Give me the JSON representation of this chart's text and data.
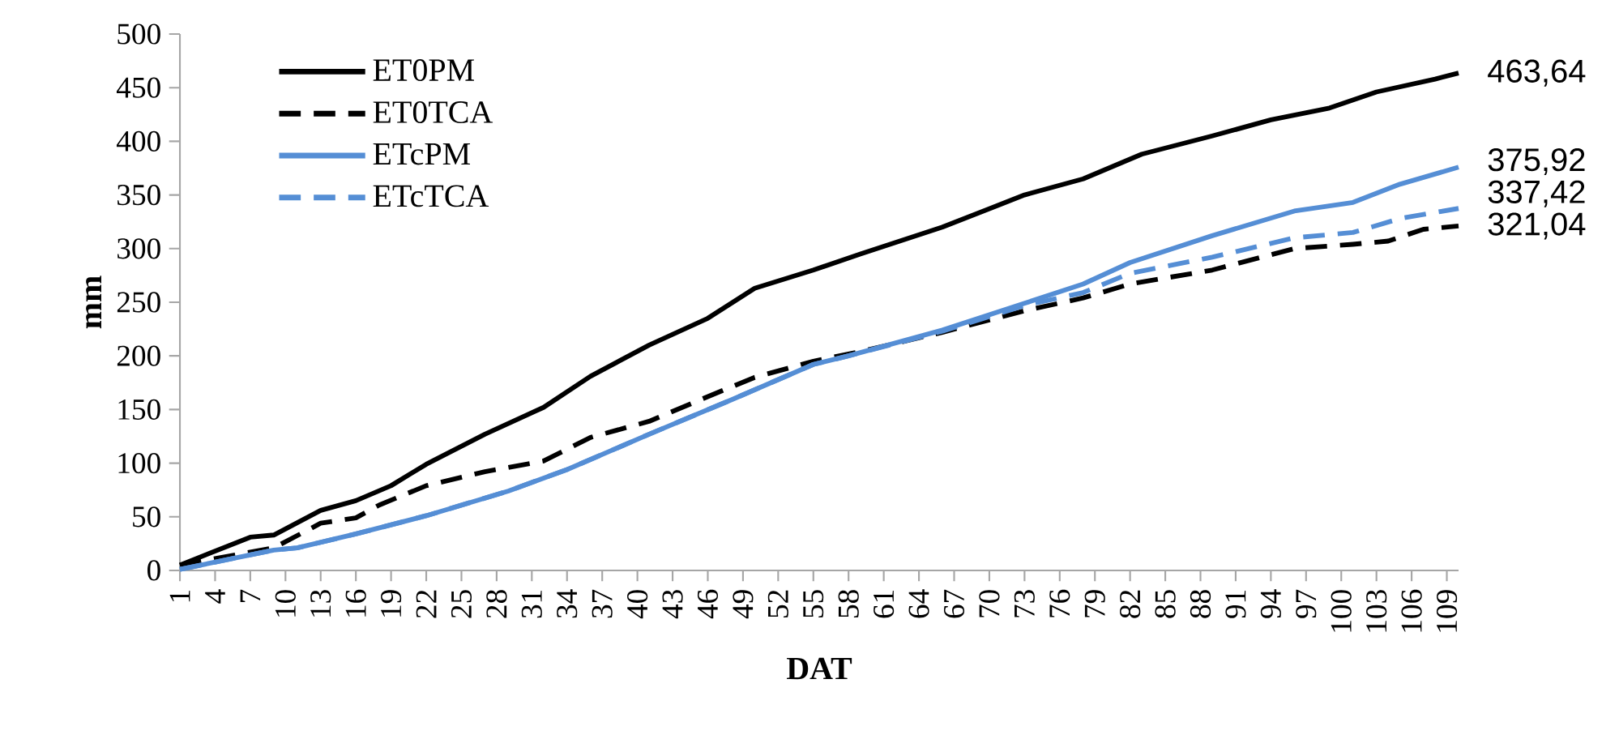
{
  "chart_data": {
    "type": "line",
    "xlabel": "DAT",
    "ylabel": "mm",
    "xlim": [
      1,
      110
    ],
    "xticks": [
      1,
      4,
      7,
      10,
      13,
      16,
      19,
      22,
      25,
      28,
      31,
      34,
      37,
      40,
      43,
      46,
      49,
      52,
      55,
      58,
      61,
      64,
      67,
      70,
      73,
      76,
      79,
      82,
      85,
      88,
      91,
      94,
      97,
      100,
      103,
      106,
      109
    ],
    "ylim": [
      0,
      500
    ],
    "yticks": [
      0,
      50,
      100,
      150,
      200,
      250,
      300,
      350,
      400,
      450,
      500
    ],
    "grid": false,
    "legend": "top left",
    "marker": "none",
    "series": [
      {
        "name": "ET0PM",
        "color": "#000000",
        "line_style": "solid",
        "x": [
          1,
          7,
          9,
          13,
          16,
          19,
          22,
          27,
          32,
          36,
          41,
          46,
          50,
          55,
          59,
          66,
          73,
          78,
          83,
          89,
          94,
          99,
          103,
          108,
          110
        ],
        "values": [
          5,
          31,
          33,
          56,
          65,
          79,
          99,
          127,
          152,
          181,
          210,
          235,
          263,
          280,
          295,
          320,
          350,
          365,
          388,
          405,
          420,
          431,
          446,
          458,
          463.64
        ],
        "value_labels": [
          null,
          null,
          null,
          null,
          null,
          null,
          null,
          null,
          null,
          null,
          null,
          null,
          null,
          null,
          null,
          null,
          null,
          null,
          null,
          null,
          null,
          null,
          null,
          null,
          "463,64"
        ]
      },
      {
        "name": "ET0TCA",
        "color": "#000000",
        "line_style": "dashed",
        "x": [
          1,
          9,
          13,
          16,
          18,
          22,
          27,
          32,
          36,
          41,
          46,
          50,
          55,
          59,
          66,
          73,
          78,
          82,
          89,
          96,
          101,
          104,
          107,
          110
        ],
        "values": [
          5,
          21,
          44,
          49,
          61,
          79,
          92,
          102,
          124,
          139,
          162,
          180,
          195,
          204,
          222,
          242,
          254,
          267,
          280,
          300,
          304,
          307,
          318,
          321.04
        ],
        "value_labels": [
          null,
          null,
          null,
          null,
          null,
          null,
          null,
          null,
          null,
          null,
          null,
          null,
          null,
          null,
          null,
          null,
          null,
          null,
          null,
          null,
          null,
          null,
          null,
          "321,04"
        ]
      },
      {
        "name": "ETcPM",
        "color": "#558ed5",
        "line_style": "solid",
        "x": [
          1,
          9,
          11,
          16,
          22,
          29,
          34,
          41,
          48,
          55,
          58,
          66,
          73,
          78,
          82,
          89,
          96,
          101,
          105,
          110
        ],
        "values": [
          1,
          19,
          21,
          34,
          51,
          74,
          94,
          127,
          159,
          192,
          200,
          224,
          249,
          267,
          287,
          312,
          335,
          343,
          360,
          375.92
        ],
        "value_labels": [
          null,
          null,
          null,
          null,
          null,
          null,
          null,
          null,
          null,
          null,
          null,
          null,
          null,
          null,
          null,
          null,
          null,
          null,
          null,
          "375,92"
        ]
      },
      {
        "name": "ETcTCA",
        "color": "#558ed5",
        "line_style": "dashed",
        "x": [
          1,
          9,
          11,
          16,
          22,
          29,
          34,
          41,
          48,
          55,
          58,
          66,
          73,
          78,
          82,
          89,
          96,
          101,
          105,
          110
        ],
        "values": [
          1,
          19,
          21,
          34,
          51,
          74,
          94,
          127,
          159,
          192,
          200,
          223,
          247,
          259,
          277,
          292,
          310,
          315,
          328,
          337.42
        ],
        "value_labels": [
          null,
          null,
          null,
          null,
          null,
          null,
          null,
          null,
          null,
          null,
          null,
          null,
          null,
          null,
          null,
          null,
          null,
          null,
          null,
          "337,42"
        ]
      }
    ]
  }
}
